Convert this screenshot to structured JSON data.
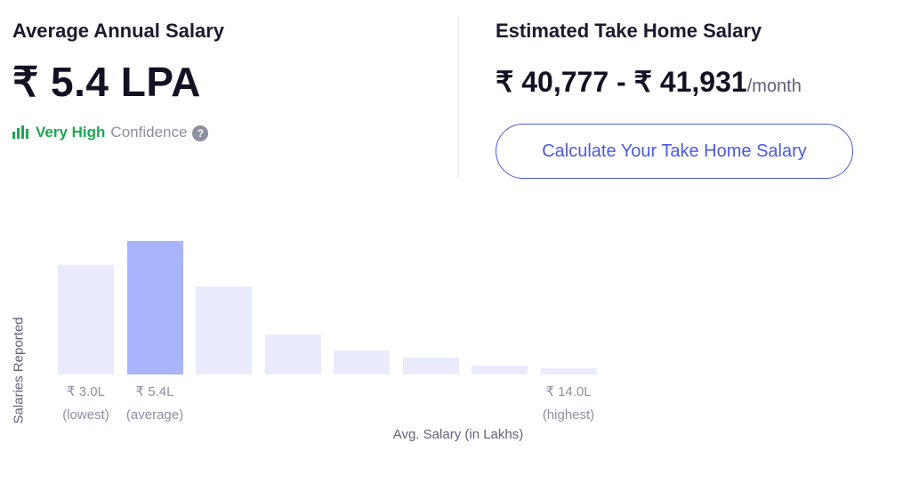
{
  "salary": {
    "heading": "Average Annual Salary",
    "value": "₹ 5.4 LPA",
    "confidence_level": "Very High",
    "confidence_label": "Confidence",
    "help": "?"
  },
  "take_home": {
    "heading": "Estimated Take Home Salary",
    "range": "₹ 40,777 - ₹ 41,931",
    "unit": "/month",
    "button_label": "Calculate Your Take Home Salary"
  },
  "colors": {
    "accent": "#4a5ad8",
    "confidence_green": "#1da851",
    "bar": "#e9ebfd",
    "bar_active": "#a8b4fb"
  },
  "chart_data": {
    "type": "bar",
    "ylabel": "Salaries Reported",
    "xlabel": "Avg. Salary (in Lakhs)",
    "values": [
      82,
      100,
      66,
      30,
      18,
      13,
      7,
      5
    ],
    "highlight_index": 1,
    "tick_labels": [
      {
        "index": 0,
        "value": "₹ 3.0L",
        "note": "(lowest)"
      },
      {
        "index": 1,
        "value": "₹ 5.4L",
        "note": "(average)"
      },
      {
        "index": 7,
        "value": "₹ 14.0L",
        "note": "(highest)"
      }
    ]
  }
}
